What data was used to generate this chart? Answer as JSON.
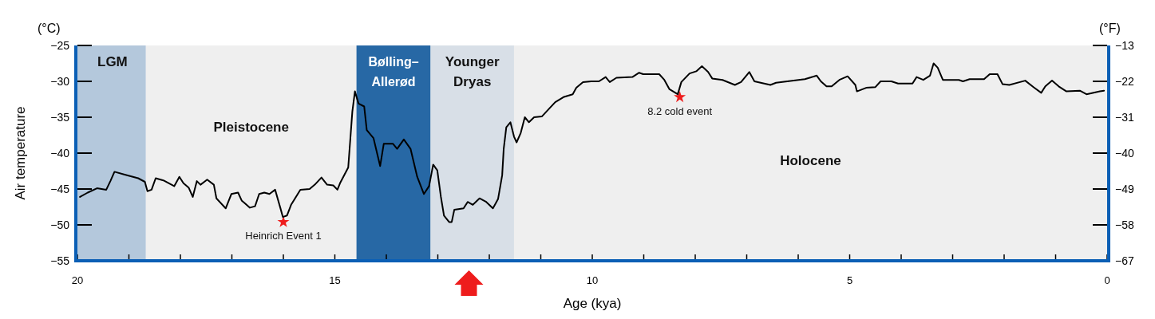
{
  "chart_data": {
    "type": "line",
    "xlabel": "Age (kya)",
    "ylabel": "Air temperature",
    "xlim": [
      20,
      0
    ],
    "xticks": [
      20,
      {
        "value": 19,
        "label": null
      },
      {
        "value": 18,
        "label": null
      },
      {
        "value": 17,
        "label": null
      },
      {
        "value": 16,
        "label": null
      },
      15,
      {
        "value": 14,
        "label": null
      },
      {
        "value": 13,
        "label": null
      },
      {
        "value": 12,
        "label": null
      },
      {
        "value": 11,
        "label": null
      },
      10,
      {
        "value": 9,
        "label": null
      },
      {
        "value": 8,
        "label": null
      },
      {
        "value": 7,
        "label": null
      },
      {
        "value": 6,
        "label": null
      },
      5,
      {
        "value": 4,
        "label": null
      },
      {
        "value": 3,
        "label": null
      },
      {
        "value": 2,
        "label": null
      },
      {
        "value": 1,
        "label": null
      },
      0
    ],
    "ylim": [
      -55,
      -25
    ],
    "yticks": [
      -55,
      -50,
      -45,
      -40,
      -35,
      -30,
      -25
    ],
    "y2lim": [
      -67,
      -13
    ],
    "y2ticks": [
      -67,
      -58,
      -49,
      -40,
      -31,
      -22,
      -13
    ],
    "grid": false,
    "marker": "none",
    "line_style": "solid",
    "bands": [
      {
        "axis": "x",
        "from": 20,
        "to": 18.67,
        "label": "LGM",
        "color": "#b4c8dc"
      },
      {
        "axis": "x",
        "from": 18.67,
        "to": 14.58,
        "label": "Pleistocene",
        "color": "#efefef"
      },
      {
        "axis": "x",
        "from": 14.58,
        "to": 13.14,
        "label": "Bølling–Allerød",
        "color": "#2768a5"
      },
      {
        "axis": "x",
        "from": 13.14,
        "to": 11.52,
        "label": "Younger Dryas",
        "color": "#d8dfe7"
      },
      {
        "axis": "x",
        "from": 11.52,
        "to": 0,
        "label": "Holocene",
        "color": "#efefef"
      }
    ],
    "annotations": [
      "(°C)",
      "(°F)",
      {
        "text": "Heinrich Event 1",
        "x": 16.0,
        "y": -49.6
      },
      {
        "text": "8.2 cold event",
        "x": 8.3,
        "y": -32.2
      }
    ],
    "series": [
      {
        "type": "scatter",
        "color": "#ee1c1c",
        "marker": "star",
        "x": [
          16.0,
          8.3
        ],
        "values": [
          -49.6,
          -32.2
        ]
      },
      {
        "color": "#000000",
        "x": [
          19.95,
          19.8,
          19.62,
          19.44,
          19.36,
          19.28,
          19.08,
          18.82,
          18.69,
          18.64,
          18.56,
          18.48,
          18.33,
          18.12,
          18.02,
          17.94,
          17.84,
          17.76,
          17.68,
          17.61,
          17.48,
          17.35,
          17.3,
          17.12,
          17.01,
          16.88,
          16.81,
          16.65,
          16.55,
          16.47,
          16.37,
          16.27,
          16.16,
          16.06,
          16.01,
          15.93,
          15.85,
          15.67,
          15.49,
          15.39,
          15.26,
          15.15,
          15.03,
          14.95,
          14.9,
          14.74,
          14.66,
          14.61,
          14.54,
          14.43,
          14.38,
          14.25,
          14.12,
          14.05,
          13.87,
          13.79,
          13.66,
          13.53,
          13.4,
          13.27,
          13.17,
          13.09,
          13.01,
          12.94,
          12.88,
          12.78,
          12.73,
          12.68,
          12.5,
          12.42,
          12.32,
          12.19,
          12.06,
          11.93,
          11.83,
          11.75,
          11.72,
          11.67,
          11.59,
          11.52,
          11.47,
          11.39,
          11.31,
          11.23,
          11.13,
          10.98,
          10.85,
          10.72,
          10.56,
          10.38,
          10.31,
          10.18,
          10.02,
          9.87,
          9.74,
          9.66,
          9.53,
          9.22,
          9.09,
          9.01,
          8.7,
          8.6,
          8.5,
          8.34,
          8.27,
          8.11,
          7.98,
          7.87,
          7.75,
          7.67,
          7.47,
          7.23,
          7.11,
          6.95,
          6.85,
          6.54,
          6.43,
          5.87,
          5.64,
          5.56,
          5.45,
          5.35,
          5.2,
          5.04,
          4.89,
          4.86,
          4.68,
          4.5,
          4.4,
          4.19,
          4.06,
          3.78,
          3.7,
          3.57,
          3.44,
          3.37,
          3.29,
          3.19,
          2.88,
          2.8,
          2.67,
          2.39,
          2.28,
          2.13,
          2.03,
          1.9,
          1.59,
          1.43,
          1.28,
          1.2,
          1.07,
          0.94,
          0.79,
          0.53,
          0.4,
          0.14,
          0.06
        ],
        "values": [
          -46.1,
          -45.5,
          -44.9,
          -45.1,
          -43.9,
          -42.6,
          -43.0,
          -43.5,
          -44.0,
          -45.3,
          -45.1,
          -43.5,
          -43.8,
          -44.6,
          -43.3,
          -44.2,
          -44.8,
          -46.1,
          -43.9,
          -44.4,
          -43.7,
          -44.4,
          -46.3,
          -47.7,
          -45.7,
          -45.5,
          -46.6,
          -47.6,
          -47.4,
          -45.7,
          -45.5,
          -45.7,
          -45.1,
          -47.6,
          -48.9,
          -48.7,
          -47.2,
          -45.1,
          -45.0,
          -44.4,
          -43.4,
          -44.4,
          -44.5,
          -45.1,
          -44.2,
          -42.0,
          -34.2,
          -31.4,
          -33.1,
          -33.5,
          -36.8,
          -37.9,
          -41.8,
          -38.7,
          -38.7,
          -39.4,
          -38.1,
          -39.4,
          -43.3,
          -45.7,
          -44.6,
          -41.6,
          -42.4,
          -46.1,
          -48.7,
          -49.6,
          -49.6,
          -47.9,
          -47.7,
          -46.8,
          -47.2,
          -46.3,
          -46.8,
          -47.7,
          -46.4,
          -43.1,
          -39.4,
          -36.4,
          -35.7,
          -37.7,
          -38.5,
          -37.2,
          -35.0,
          -35.7,
          -35.0,
          -34.9,
          -33.9,
          -32.9,
          -32.2,
          -31.8,
          -30.9,
          -30.1,
          -30.0,
          -30.0,
          -29.4,
          -30.1,
          -29.5,
          -29.4,
          -28.8,
          -29.0,
          -29.0,
          -29.8,
          -31.1,
          -31.8,
          -30.1,
          -28.9,
          -28.6,
          -27.9,
          -28.7,
          -29.6,
          -29.8,
          -30.5,
          -30.1,
          -28.7,
          -30.0,
          -30.5,
          -30.2,
          -29.7,
          -29.2,
          -30.0,
          -30.7,
          -30.7,
          -29.8,
          -29.3,
          -30.5,
          -31.4,
          -30.9,
          -30.8,
          -30.0,
          -30.0,
          -30.3,
          -30.3,
          -29.4,
          -29.8,
          -29.2,
          -27.5,
          -28.1,
          -29.8,
          -29.8,
          -30.0,
          -29.7,
          -29.7,
          -29.0,
          -29.0,
          -30.4,
          -30.5,
          -29.9,
          -30.8,
          -31.6,
          -30.7,
          -29.9,
          -30.7,
          -31.4,
          -31.3,
          -31.8,
          -31.4,
          -31.3
        ]
      }
    ]
  }
}
